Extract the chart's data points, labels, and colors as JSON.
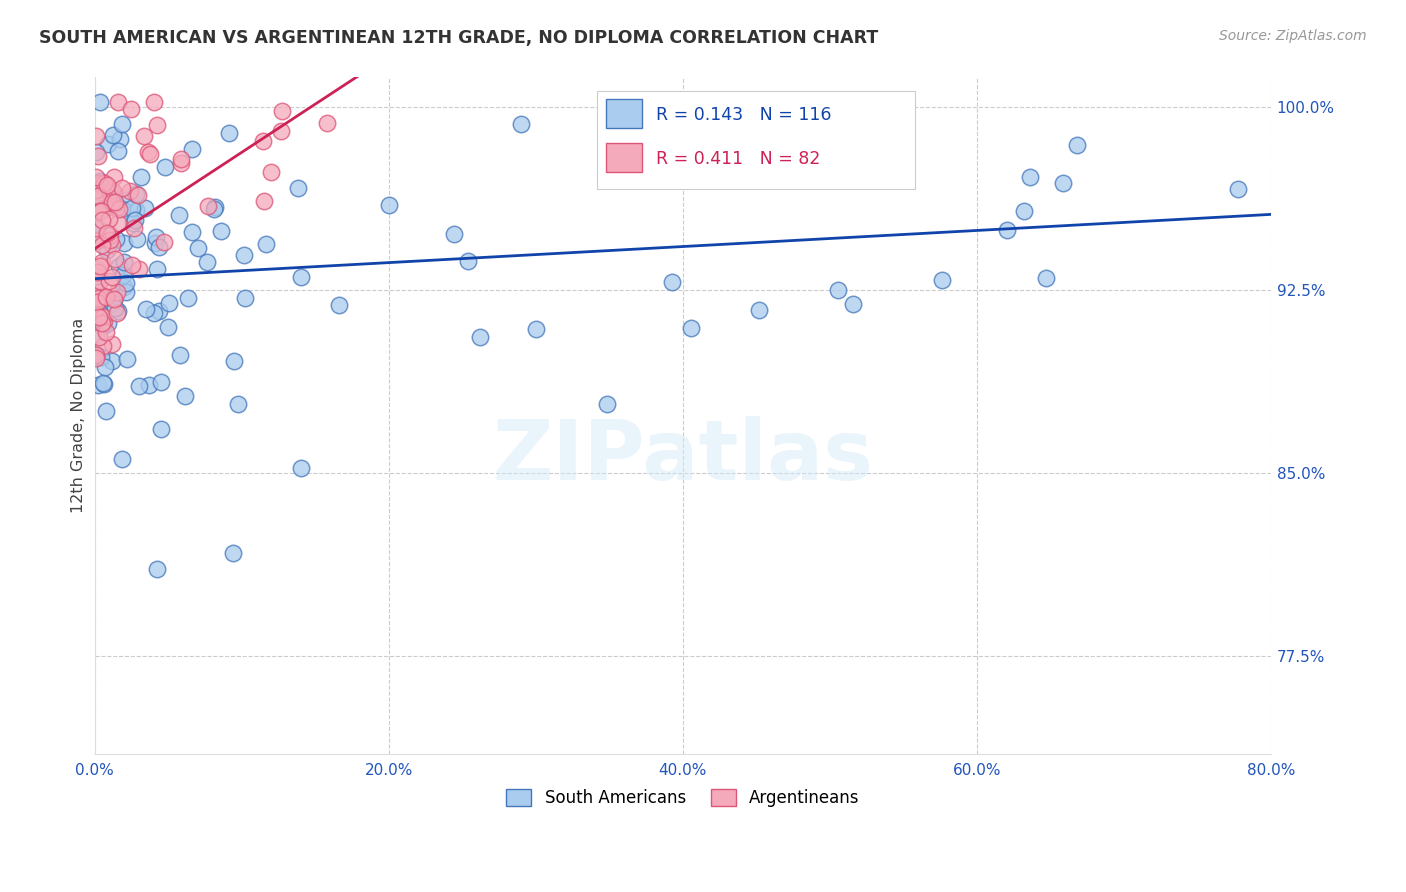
{
  "title": "SOUTH AMERICAN VS ARGENTINEAN 12TH GRADE, NO DIPLOMA CORRELATION CHART",
  "source": "Source: ZipAtlas.com",
  "ylabel": "12th Grade, No Diploma",
  "xmin": 0.0,
  "xmax": 0.8,
  "ymin": 0.735,
  "ymax": 1.012,
  "xtick_labels": [
    "0.0%",
    "20.0%",
    "40.0%",
    "60.0%",
    "80.0%"
  ],
  "xtick_values": [
    0.0,
    0.2,
    0.4,
    0.6,
    0.8
  ],
  "ytick_labels": [
    "77.5%",
    "85.0%",
    "92.5%",
    "100.0%"
  ],
  "ytick_values": [
    0.775,
    0.85,
    0.925,
    1.0
  ],
  "blue_fill": "#aaccee",
  "blue_edge": "#4477bb",
  "pink_fill": "#f5aabb",
  "pink_edge": "#dd5577",
  "blue_line": "#1144aa",
  "pink_line": "#cc2255",
  "legend_label_blue": "South Americans",
  "legend_label_pink": "Argentineans",
  "legend_blue_r": "R = 0.143",
  "legend_blue_n": "N = 116",
  "legend_pink_r": "R = 0.411",
  "legend_pink_n": "N = 82",
  "watermark": "ZIPatlas",
  "title_color": "#333333",
  "axis_tick_color": "#2255bb",
  "source_color": "#999999"
}
